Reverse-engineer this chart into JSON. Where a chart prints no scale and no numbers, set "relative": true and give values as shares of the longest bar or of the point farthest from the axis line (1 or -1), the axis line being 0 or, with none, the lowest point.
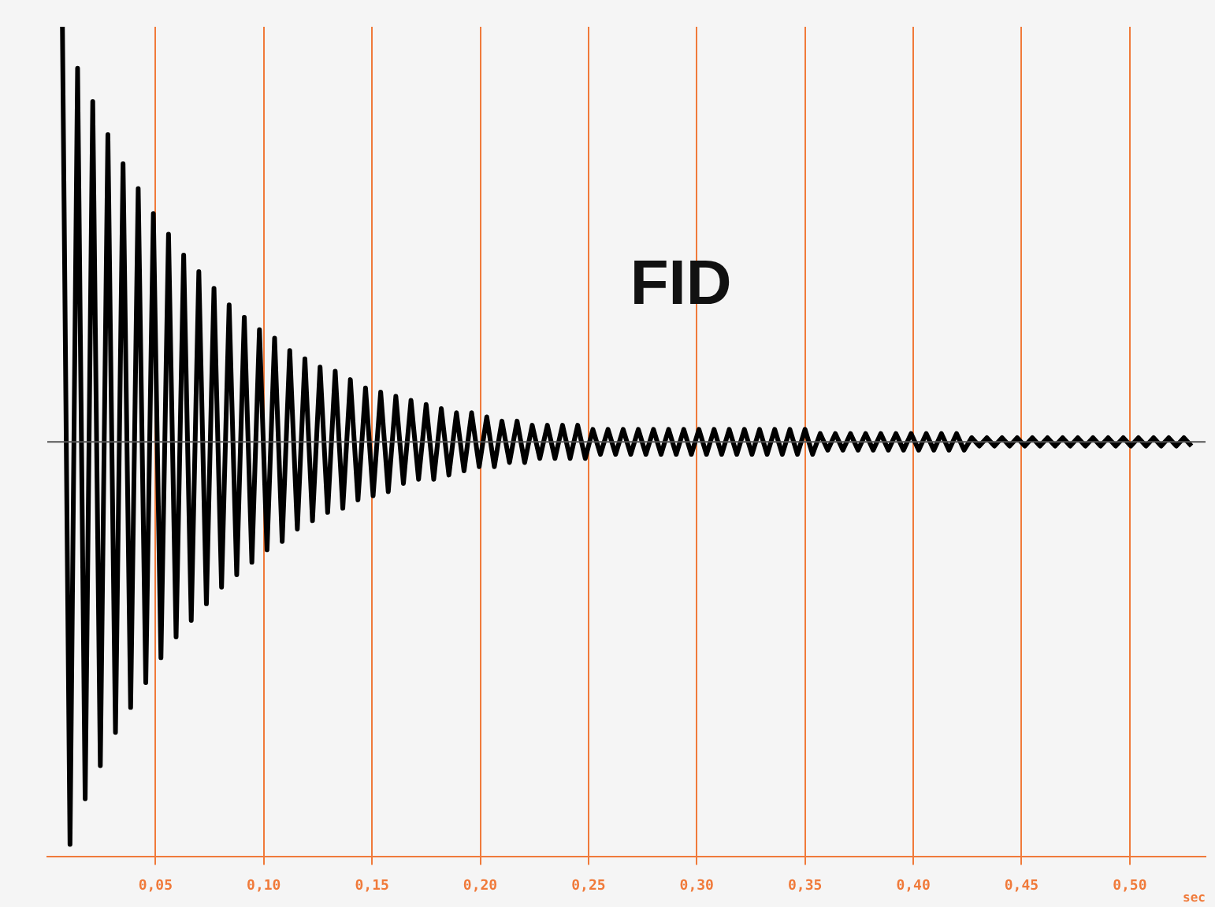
{
  "chart_data": {
    "type": "line",
    "relative": true,
    "xlabel": "sec",
    "annotations": [
      "FID"
    ],
    "xlim": [
      0,
      0.535
    ],
    "xticks": [
      {
        "value": 0.05,
        "label": "0,05"
      },
      {
        "value": 0.1,
        "label": "0,10"
      },
      {
        "value": 0.15,
        "label": "0,15"
      },
      {
        "value": 0.2,
        "label": "0,20"
      },
      {
        "value": 0.25,
        "label": "0,25"
      },
      {
        "value": 0.3,
        "label": "0,30"
      },
      {
        "value": 0.35,
        "label": "0,35"
      },
      {
        "value": 0.4,
        "label": "0,40"
      },
      {
        "value": 0.45,
        "label": "0,45"
      },
      {
        "value": 0.5,
        "label": "0,50"
      }
    ],
    "grid": "x",
    "legend": false,
    "series": [
      {
        "color": "#000000",
        "x": [
          0.007,
          0.0105,
          0.014,
          0.0175,
          0.021,
          0.0245,
          0.028,
          0.0315,
          0.035,
          0.0385,
          0.042,
          0.0455,
          0.049,
          0.0525,
          0.056,
          0.0595,
          0.063,
          0.0665,
          0.07,
          0.0735,
          0.077,
          0.0805,
          0.084,
          0.0875,
          0.091,
          0.0945,
          0.098,
          0.1015,
          0.105,
          0.1085,
          0.112,
          0.1155,
          0.119,
          0.1225,
          0.126,
          0.1295,
          0.133,
          0.1365,
          0.14,
          0.1435,
          0.147,
          0.1505,
          0.154,
          0.1575,
          0.161,
          0.1645,
          0.168,
          0.1715,
          0.175,
          0.1785,
          0.182,
          0.1855,
          0.189,
          0.1925,
          0.196,
          0.1995,
          0.203,
          0.2065,
          0.21,
          0.2135,
          0.217,
          0.2205,
          0.224,
          0.2275,
          0.231,
          0.2345,
          0.238,
          0.2415,
          0.245,
          0.2485,
          0.252,
          0.2555,
          0.259,
          0.2625,
          0.266,
          0.2695,
          0.273,
          0.2765,
          0.28,
          0.2835,
          0.287,
          0.2905,
          0.294,
          0.2975,
          0.301,
          0.3045,
          0.308,
          0.3115,
          0.315,
          0.3185,
          0.322,
          0.3255,
          0.329,
          0.3325,
          0.336,
          0.3395,
          0.343,
          0.3465,
          0.35,
          0.3535,
          0.357,
          0.3605,
          0.364,
          0.3675,
          0.371,
          0.3745,
          0.378,
          0.3815,
          0.385,
          0.3885,
          0.392,
          0.3955,
          0.399,
          0.4025,
          0.406,
          0.4095,
          0.413,
          0.4165,
          0.42,
          0.4235,
          0.427,
          0.4305,
          0.434,
          0.4375,
          0.441,
          0.4445,
          0.448,
          0.4515,
          0.455,
          0.4585,
          0.462,
          0.4655,
          0.469,
          0.4725,
          0.476,
          0.4795,
          0.483,
          0.4865,
          0.49,
          0.4935,
          0.497,
          0.5005,
          0.504,
          0.5075,
          0.511,
          0.5145,
          0.518,
          0.5215,
          0.525,
          0.5285
        ],
        "values": [
          1,
          -0.97,
          0.9,
          -0.86,
          0.82,
          -0.78,
          0.74,
          -0.7,
          0.67,
          -0.64,
          0.61,
          -0.58,
          0.55,
          -0.52,
          0.5,
          -0.47,
          0.45,
          -0.43,
          0.41,
          -0.39,
          0.37,
          -0.35,
          0.33,
          -0.32,
          0.3,
          -0.29,
          0.27,
          -0.26,
          0.25,
          -0.24,
          0.22,
          -0.21,
          0.2,
          -0.19,
          0.18,
          -0.17,
          0.17,
          -0.16,
          0.15,
          -0.14,
          0.13,
          -0.13,
          0.12,
          -0.12,
          0.11,
          -0.1,
          0.1,
          -0.09,
          0.09,
          -0.09,
          0.08,
          -0.08,
          0.07,
          -0.07,
          0.07,
          -0.06,
          0.06,
          -0.06,
          0.05,
          -0.05,
          0.05,
          -0.05,
          0.04,
          -0.04,
          0.04,
          -0.04,
          0.04,
          -0.04,
          0.04,
          -0.04,
          0.03,
          -0.03,
          0.03,
          -0.03,
          0.03,
          -0.03,
          0.03,
          -0.03,
          0.03,
          -0.03,
          0.03,
          -0.03,
          0.03,
          -0.03,
          0.03,
          -0.03,
          0.03,
          -0.03,
          0.03,
          -0.03,
          0.03,
          -0.03,
          0.03,
          -0.03,
          0.03,
          -0.03,
          0.03,
          -0.03,
          0.03,
          -0.03,
          0.02,
          -0.02,
          0.02,
          -0.02,
          0.02,
          -0.02,
          0.02,
          -0.02,
          0.02,
          -0.02,
          0.02,
          -0.02,
          0.02,
          -0.02,
          0.02,
          -0.02,
          0.02,
          -0.02,
          0.02,
          -0.02,
          0.01,
          -0.01,
          0.01,
          -0.01,
          0.01,
          -0.01,
          0.01,
          -0.01,
          0.01,
          -0.01,
          0.01,
          -0.01,
          0.01,
          -0.01,
          0.01,
          -0.01,
          0.01,
          -0.01,
          0.01,
          -0.01,
          0.01,
          -0.01,
          0.01,
          -0.01,
          0.01,
          -0.01,
          0.01,
          -0.01,
          0.01,
          -0.01
        ]
      }
    ]
  }
}
